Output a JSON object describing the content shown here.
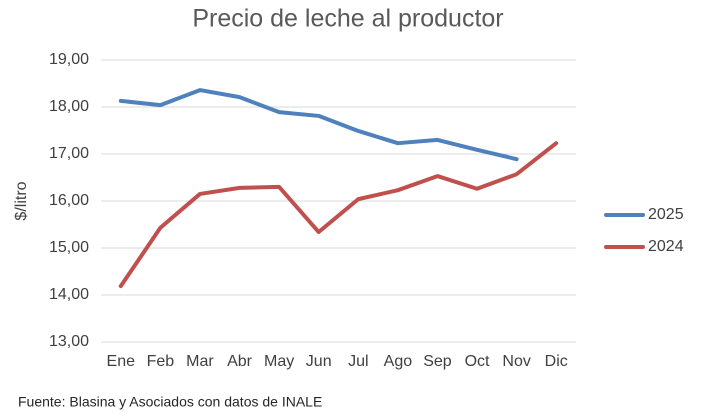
{
  "chart_data": {
    "type": "line",
    "title": "Precio de leche al productor",
    "y_label": "$/litro",
    "source": "Fuente: Blasina y Asociados con datos de INALE",
    "categories": [
      "Ene",
      "Feb",
      "Mar",
      "Abr",
      "May",
      "Jun",
      "Jul",
      "Ago",
      "Sep",
      "Oct",
      "Nov",
      "Dic"
    ],
    "series": [
      {
        "name": "2025",
        "color": "#4f81bd",
        "values": [
          18.13,
          18.04,
          18.36,
          18.21,
          17.89,
          17.81,
          17.49,
          17.23,
          17.3,
          17.09,
          16.89,
          null
        ]
      },
      {
        "name": "2024",
        "color": "#c0504d",
        "values": [
          14.19,
          15.43,
          16.15,
          16.28,
          16.3,
          15.34,
          16.04,
          16.23,
          16.53,
          16.26,
          16.57,
          17.23
        ]
      }
    ],
    "ylim": [
      13,
      19
    ],
    "yticks": [
      {
        "value": 13,
        "label": "13,00"
      },
      {
        "value": 14,
        "label": "14,00"
      },
      {
        "value": 15,
        "label": "15,00"
      },
      {
        "value": 16,
        "label": "16,00"
      },
      {
        "value": 17,
        "label": "17,00"
      },
      {
        "value": 18,
        "label": "18,00"
      },
      {
        "value": 19,
        "label": "19,00"
      }
    ],
    "grid": true,
    "legend": "right"
  }
}
